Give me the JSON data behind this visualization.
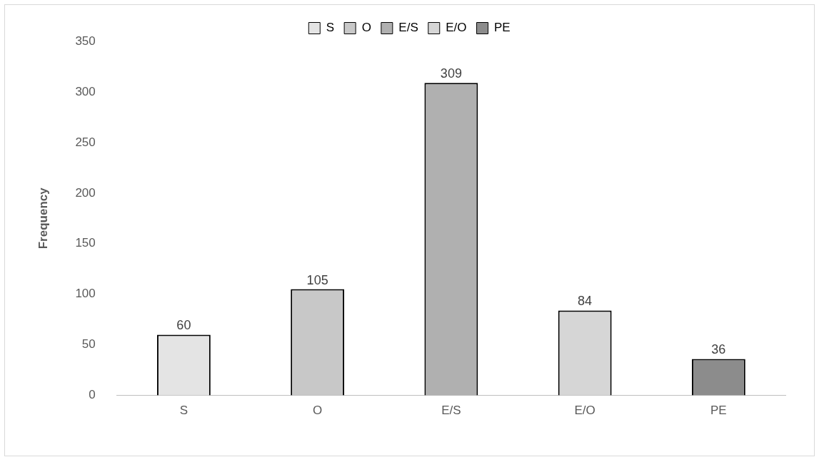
{
  "chart_data": {
    "type": "bar",
    "ylabel": "Frequency",
    "categories": [
      "S",
      "O",
      "E/S",
      "E/O",
      "PE"
    ],
    "series": [
      {
        "name": "S",
        "color": "#e4e4e4",
        "values": [
          60,
          null,
          null,
          null,
          null
        ]
      },
      {
        "name": "O",
        "color": "#c8c8c8",
        "values": [
          null,
          105,
          null,
          null,
          null
        ]
      },
      {
        "name": "E/S",
        "color": "#b0b0b0",
        "values": [
          null,
          null,
          309,
          null,
          null
        ]
      },
      {
        "name": "E/O",
        "color": "#d6d6d6",
        "values": [
          null,
          null,
          null,
          84,
          null
        ]
      },
      {
        "name": "PE",
        "color": "#8c8c8c",
        "values": [
          null,
          null,
          null,
          null,
          36
        ]
      }
    ],
    "ylim": [
      0,
      350
    ],
    "yticks": [
      0,
      50,
      100,
      150,
      200,
      250,
      300,
      350
    ],
    "grid": false,
    "legend": "top",
    "data_labels": true
  }
}
